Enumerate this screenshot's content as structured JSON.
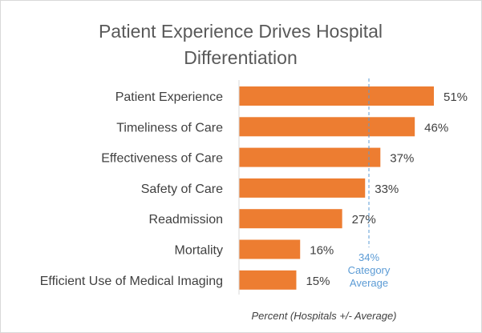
{
  "chart_data": {
    "type": "bar",
    "orientation": "horizontal",
    "title_lines": [
      "Patient Experience Drives Hospital",
      "Differentiation"
    ],
    "categories": [
      "Patient Experience",
      "Timeliness of Care",
      "Effectiveness of Care",
      "Safety of Care",
      "Readmission",
      "Mortality",
      "Efficient Use of Medical Imaging"
    ],
    "values": [
      51,
      46,
      37,
      33,
      27,
      16,
      15
    ],
    "value_labels": [
      "51%",
      "46%",
      "37%",
      "33%",
      "27%",
      "16%",
      "15%"
    ],
    "xlabel": "Percent (Hospitals +/- Average)",
    "xlim": [
      0,
      51
    ],
    "grid": false,
    "bar_color": "#ed7d31",
    "reference_line": {
      "value": 34,
      "label_lines": [
        "34%",
        "Category",
        "Average"
      ],
      "color": "#5b9bd5",
      "style": "dashed"
    }
  }
}
